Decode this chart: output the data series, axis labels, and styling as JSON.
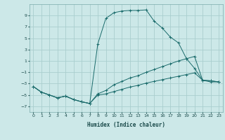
{
  "xlabel": "Humidex (Indice chaleur)",
  "background_color": "#cce8e8",
  "grid_color": "#aacece",
  "line_color": "#1a6b6b",
  "xlim": [
    -0.5,
    23.5
  ],
  "ylim": [
    -8,
    11
  ],
  "xticks": [
    0,
    1,
    2,
    3,
    4,
    5,
    6,
    7,
    8,
    9,
    10,
    11,
    12,
    13,
    14,
    15,
    16,
    17,
    18,
    19,
    20,
    21,
    22,
    23
  ],
  "yticks": [
    -7,
    -5,
    -3,
    -1,
    1,
    3,
    5,
    7,
    9
  ],
  "line1_x": [
    0,
    1,
    2,
    3,
    4,
    5,
    6,
    7,
    8,
    9,
    10,
    11,
    12,
    13,
    14,
    15,
    16,
    17,
    18,
    19,
    20,
    21,
    22,
    23
  ],
  "line1_y": [
    -3.5,
    -4.5,
    -5.0,
    -5.5,
    -5.2,
    -5.8,
    -6.2,
    -6.5,
    4.0,
    8.5,
    9.5,
    9.8,
    9.9,
    9.9,
    10.0,
    8.0,
    6.8,
    5.2,
    4.2,
    1.4,
    -0.3,
    -2.4,
    -2.5,
    -2.7
  ],
  "line2_x": [
    0,
    1,
    2,
    3,
    4,
    5,
    6,
    7,
    8,
    9,
    10,
    11,
    12,
    13,
    14,
    15,
    16,
    17,
    18,
    19,
    20,
    21,
    22,
    23
  ],
  "line2_y": [
    -3.5,
    -4.5,
    -5.0,
    -5.5,
    -5.2,
    -5.8,
    -6.2,
    -6.5,
    -4.8,
    -4.2,
    -3.2,
    -2.6,
    -2.0,
    -1.6,
    -1.0,
    -0.5,
    0.0,
    0.5,
    1.0,
    1.4,
    1.8,
    -2.4,
    -2.5,
    -2.7
  ],
  "line3_x": [
    0,
    1,
    2,
    3,
    4,
    5,
    6,
    7,
    8,
    9,
    10,
    11,
    12,
    13,
    14,
    15,
    16,
    17,
    18,
    19,
    20,
    21,
    22,
    23
  ],
  "line3_y": [
    -3.5,
    -4.5,
    -5.0,
    -5.5,
    -5.2,
    -5.8,
    -6.2,
    -6.5,
    -5.0,
    -4.8,
    -4.4,
    -4.0,
    -3.6,
    -3.3,
    -2.9,
    -2.6,
    -2.3,
    -2.0,
    -1.7,
    -1.4,
    -1.1,
    -2.4,
    -2.7,
    -2.7
  ]
}
